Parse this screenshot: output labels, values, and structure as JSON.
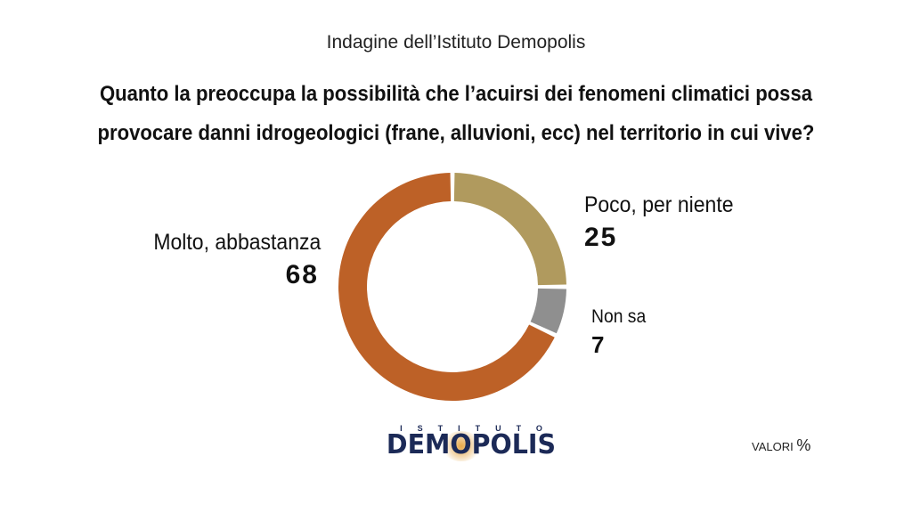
{
  "header": {
    "source": "Indagine dell’Istituto Demopolis",
    "question_line1": "Quanto la preoccupa la possibilità che l’acuirsi dei fenomeni climatici possa",
    "question_line2": "provocare danni idrogeologici (frane, alluvioni, ecc) nel territorio in cui vive?"
  },
  "chart_data": {
    "type": "pie",
    "donut": true,
    "unit": "%",
    "slices": [
      {
        "label": "Poco, per niente",
        "value": 25,
        "color": "#b09a5e"
      },
      {
        "label": "Non sa",
        "value": 7,
        "color": "#8f8f8f"
      },
      {
        "label": "Molto, abbastanza",
        "value": 68,
        "color": "#bd6127"
      }
    ]
  },
  "footer": {
    "logo_top": "ISTITUTO",
    "logo_main": "DEMOPOLIS",
    "logo_color": "#1c2a57",
    "valori_label": "VALORI",
    "valori_unit": "%"
  }
}
